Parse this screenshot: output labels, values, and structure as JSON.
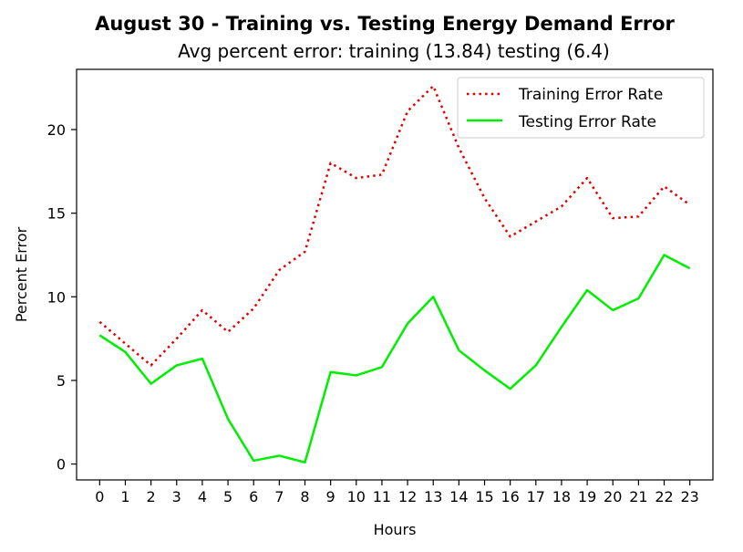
{
  "chart_data": {
    "type": "line",
    "title": "August 30 - Training vs. Testing Energy Demand Error",
    "subtitle": "Avg percent error: training (13.84) testing (6.4)",
    "xlabel": "Hours",
    "ylabel": "Percent Error",
    "x": [
      0,
      1,
      2,
      3,
      4,
      5,
      6,
      7,
      8,
      9,
      10,
      11,
      12,
      13,
      14,
      15,
      16,
      17,
      18,
      19,
      20,
      21,
      22,
      23
    ],
    "x_tick_labels": [
      "0",
      "1",
      "2",
      "3",
      "4",
      "5",
      "6",
      "7",
      "8",
      "9",
      "10",
      "11",
      "12",
      "13",
      "14",
      "15",
      "16",
      "17",
      "18",
      "19",
      "20",
      "21",
      "22",
      "23"
    ],
    "xlim": [
      -0.9,
      23.9
    ],
    "ylim": [
      -0.95,
      23.6
    ],
    "y_ticks": [
      0,
      5,
      10,
      15,
      20
    ],
    "y_tick_labels": [
      "0",
      "5",
      "10",
      "15",
      "20"
    ],
    "grid": false,
    "legend_position": "top-right",
    "series": [
      {
        "name": "Training Error Rate",
        "color": "#e00000",
        "style": "dotted",
        "values": [
          8.5,
          7.2,
          5.9,
          7.5,
          9.2,
          7.9,
          9.3,
          11.6,
          12.7,
          18.0,
          17.1,
          17.3,
          21.1,
          22.6,
          18.9,
          15.9,
          13.6,
          14.5,
          15.4,
          17.1,
          14.7,
          14.8,
          16.6,
          15.5
        ]
      },
      {
        "name": "Testing Error Rate",
        "color": "#00ee00",
        "style": "solid",
        "values": [
          7.7,
          6.7,
          4.8,
          5.9,
          6.3,
          2.7,
          0.2,
          0.5,
          0.1,
          5.5,
          5.3,
          5.8,
          8.4,
          10.0,
          6.8,
          5.6,
          4.5,
          5.9,
          8.2,
          10.4,
          9.2,
          9.9,
          12.5,
          11.7
        ]
      }
    ]
  }
}
